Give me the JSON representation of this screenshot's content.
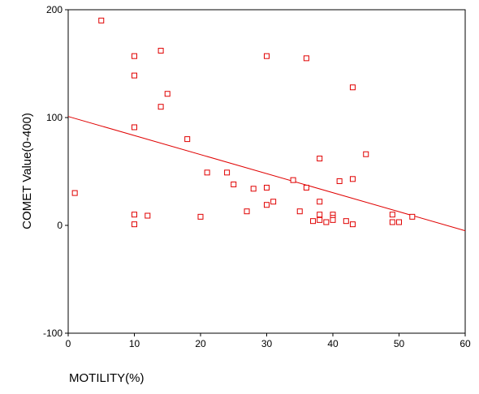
{
  "chart_data": {
    "type": "scatter",
    "xlabel": "MOTILITY(%)",
    "ylabel": "COMET Value(0-400)",
    "xlim": [
      0,
      60
    ],
    "ylim": [
      -100,
      200
    ],
    "x_ticks": [
      "0",
      "10",
      "20",
      "30",
      "40",
      "50",
      "60"
    ],
    "y_ticks": [
      "-100",
      "0",
      "100",
      "200"
    ],
    "grid": false,
    "legend": "none",
    "marker": "hollow-square",
    "color": "#e00000",
    "points": [
      {
        "x": 1,
        "y": 30
      },
      {
        "x": 5,
        "y": 190
      },
      {
        "x": 10,
        "y": 157
      },
      {
        "x": 10,
        "y": 139
      },
      {
        "x": 10,
        "y": 91
      },
      {
        "x": 10,
        "y": 10
      },
      {
        "x": 10,
        "y": 1
      },
      {
        "x": 12,
        "y": 9
      },
      {
        "x": 14,
        "y": 162
      },
      {
        "x": 14,
        "y": 110
      },
      {
        "x": 15,
        "y": 122
      },
      {
        "x": 18,
        "y": 80
      },
      {
        "x": 20,
        "y": 8
      },
      {
        "x": 21,
        "y": 49
      },
      {
        "x": 24,
        "y": 49
      },
      {
        "x": 25,
        "y": 38
      },
      {
        "x": 27,
        "y": 13
      },
      {
        "x": 28,
        "y": 34
      },
      {
        "x": 30,
        "y": 157
      },
      {
        "x": 30,
        "y": 35
      },
      {
        "x": 30,
        "y": 19
      },
      {
        "x": 31,
        "y": 22
      },
      {
        "x": 34,
        "y": 42
      },
      {
        "x": 35,
        "y": 13
      },
      {
        "x": 36,
        "y": 155
      },
      {
        "x": 36,
        "y": 35
      },
      {
        "x": 37,
        "y": 4
      },
      {
        "x": 38,
        "y": 62
      },
      {
        "x": 38,
        "y": 22
      },
      {
        "x": 38,
        "y": 10
      },
      {
        "x": 38,
        "y": 5
      },
      {
        "x": 39,
        "y": 3
      },
      {
        "x": 40,
        "y": 10
      },
      {
        "x": 40,
        "y": 7
      },
      {
        "x": 40,
        "y": 5
      },
      {
        "x": 41,
        "y": 41
      },
      {
        "x": 42,
        "y": 4
      },
      {
        "x": 43,
        "y": 128
      },
      {
        "x": 43,
        "y": 43
      },
      {
        "x": 43,
        "y": 1
      },
      {
        "x": 45,
        "y": 66
      },
      {
        "x": 49,
        "y": 10
      },
      {
        "x": 49,
        "y": 3
      },
      {
        "x": 50,
        "y": 3
      },
      {
        "x": 52,
        "y": 8
      }
    ],
    "fit_line": {
      "x": [
        0,
        60
      ],
      "y": [
        101,
        -5
      ]
    }
  }
}
